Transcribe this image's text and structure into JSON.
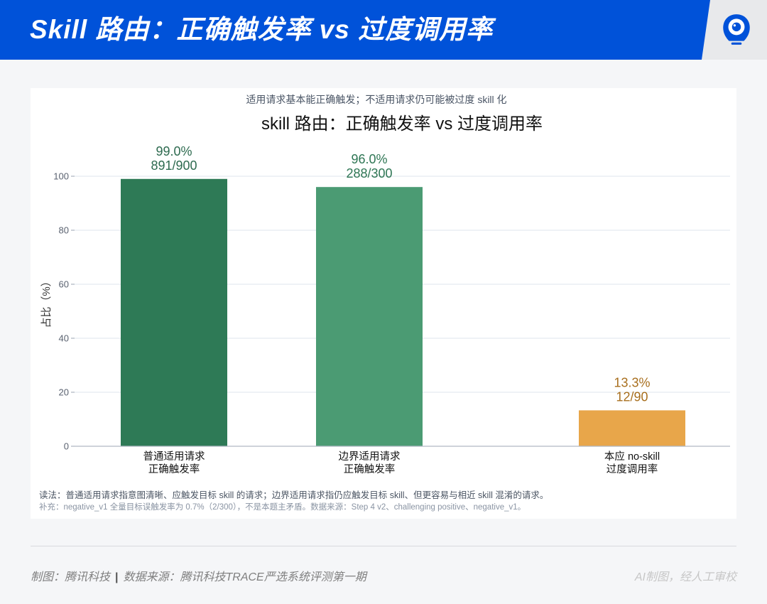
{
  "header": {
    "title": "Skill 路由：正确触发率 vs 过度调用率",
    "logo_icon": "tencent-news-logo-icon"
  },
  "colors": {
    "brand_blue": "#0052d9",
    "page_bg": "#f5f6f8",
    "card_bg": "#ffffff"
  },
  "chart_data": {
    "type": "bar",
    "subtitle": "适用请求基本能正确触发；不适用请求仍可能被过度 skill 化",
    "title": "skill 路由：正确触发率 vs 过度调用率",
    "xlabel": "",
    "ylabel": "占比（%）",
    "ylim": [
      0,
      115
    ],
    "yticks": [
      0,
      20,
      40,
      60,
      80,
      100
    ],
    "grid": true,
    "legend": "none",
    "categories": [
      [
        "普通适用请求",
        "正确触发率"
      ],
      [
        "边界适用请求",
        "正确触发率"
      ],
      [
        "本应 no-skill",
        "过度调用率"
      ]
    ],
    "values": [
      99.0,
      96.0,
      13.3
    ],
    "value_labels": [
      "99.0%",
      "96.0%",
      "13.3%"
    ],
    "count_labels": [
      "891/900",
      "288/300",
      "12/90"
    ],
    "bar_colors": [
      "#2e7a56",
      "#4b9b73",
      "#e8a64a"
    ],
    "label_colors": [
      "#2d6a4f",
      "#2e7654",
      "#a86f1e"
    ]
  },
  "notes": {
    "reading": "读法：普通适用请求指意图清晰、应触发目标 skill 的请求；边界适用请求指仍应触发目标 skill、但更容易与相近 skill 混淆的请求。",
    "supplement": "补充：negative_v1 全量目标误触发率为 0.7%（2/300），不是本题主矛盾。数据来源：Step 4 v2、challenging positive、negative_v1。"
  },
  "footer": {
    "credit": "制图：腾讯科技",
    "separator": "|",
    "source": "数据来源：腾讯科技TRACE严选系统评测第一期",
    "review": "AI制图，经人工审校"
  }
}
